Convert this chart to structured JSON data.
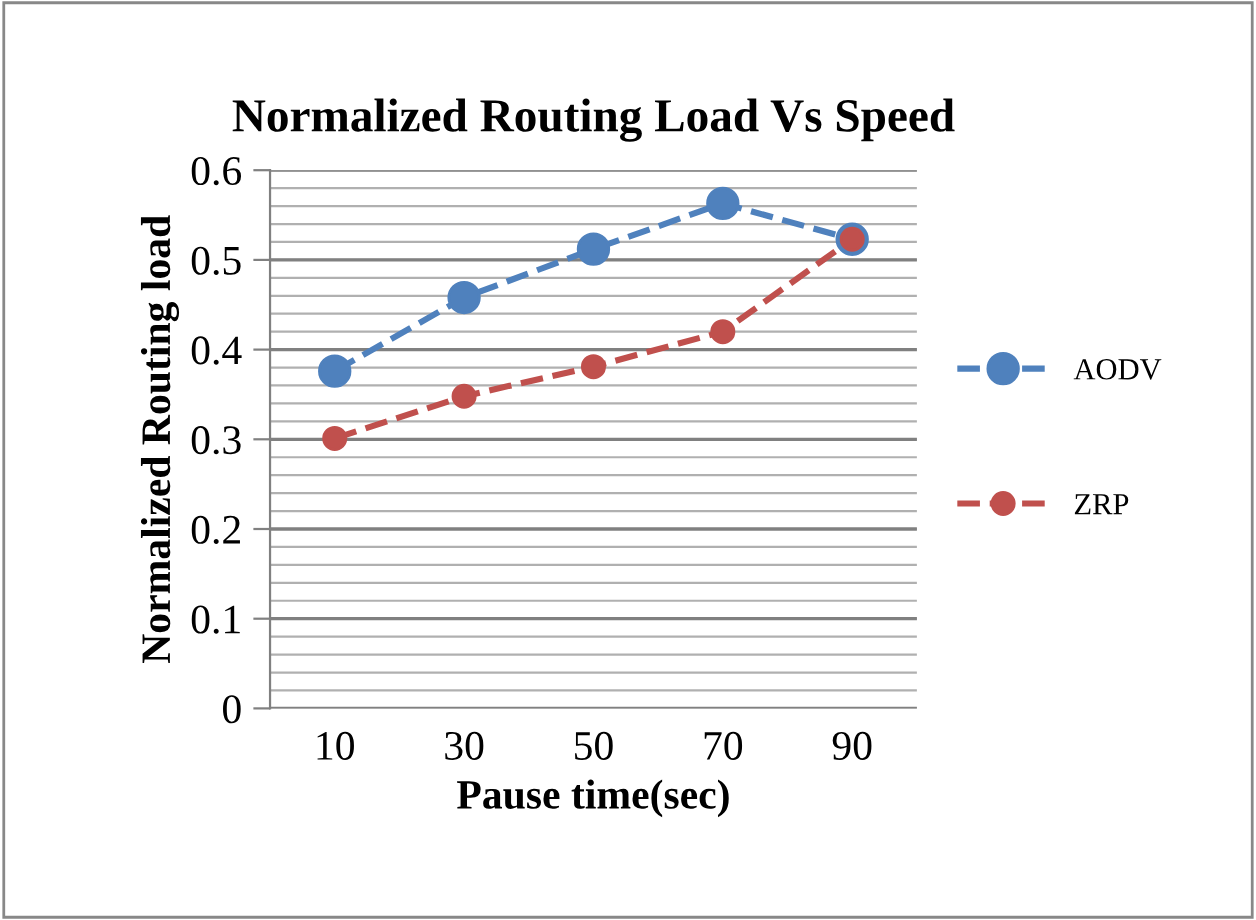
{
  "chart_data": {
    "type": "line",
    "title": "Normalized Routing Load Vs Speed",
    "xlabel": "Pause time(sec)",
    "ylabel": "Normalized Routing load",
    "categories": [
      "10",
      "30",
      "50",
      "70",
      "90"
    ],
    "series": [
      {
        "name": "AODV",
        "color": "#4f81bd",
        "values": [
          0.376,
          0.458,
          0.512,
          0.563,
          0.523
        ]
      },
      {
        "name": "ZRP",
        "color": "#c0504d",
        "values": [
          0.301,
          0.348,
          0.381,
          0.42,
          0.523
        ]
      }
    ],
    "ylim": [
      0,
      0.6
    ],
    "yticks": [
      0,
      0.1,
      0.2,
      0.3,
      0.4,
      0.5,
      0.6
    ],
    "grid": "y",
    "legend": "right",
    "marker": "circle",
    "line_style": "dashed"
  }
}
